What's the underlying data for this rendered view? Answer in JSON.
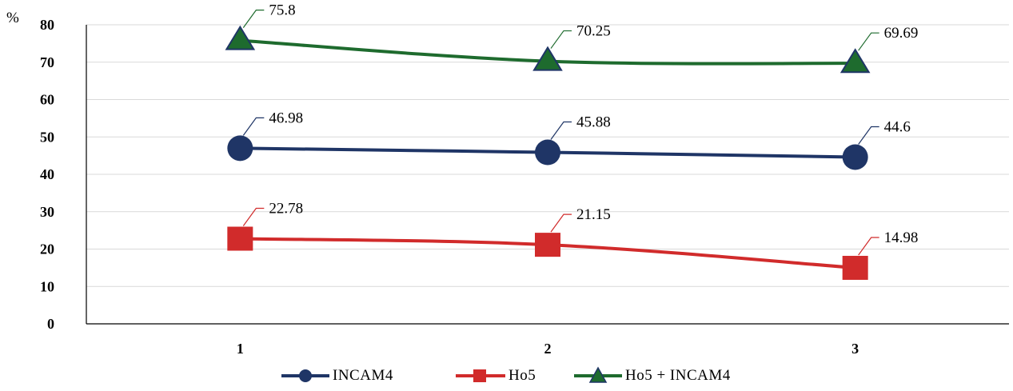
{
  "chart_data": {
    "type": "line",
    "unit_label": "%",
    "categories": [
      "1",
      "2",
      "3"
    ],
    "ylim": [
      0,
      80
    ],
    "yticks": [
      0,
      10,
      20,
      30,
      40,
      50,
      60,
      70,
      80
    ],
    "grid": true,
    "legend_position": "bottom",
    "series": [
      {
        "name": "INCAM4",
        "values": [
          46.98,
          45.88,
          44.6
        ],
        "labels": [
          "46.98",
          "45.88",
          "44.6"
        ],
        "color": "#1f3566",
        "marker": "circle"
      },
      {
        "name": "Ho5",
        "values": [
          22.78,
          21.15,
          14.98
        ],
        "labels": [
          "22.78",
          "21.15",
          "14.98"
        ],
        "color": "#d12b2b",
        "marker": "square"
      },
      {
        "name": "Ho5 + INCAM4",
        "values": [
          75.8,
          70.25,
          69.69
        ],
        "labels": [
          "75.8",
          "70.25",
          "69.69"
        ],
        "color": "#1e6b2e",
        "marker": "triangle"
      }
    ]
  }
}
